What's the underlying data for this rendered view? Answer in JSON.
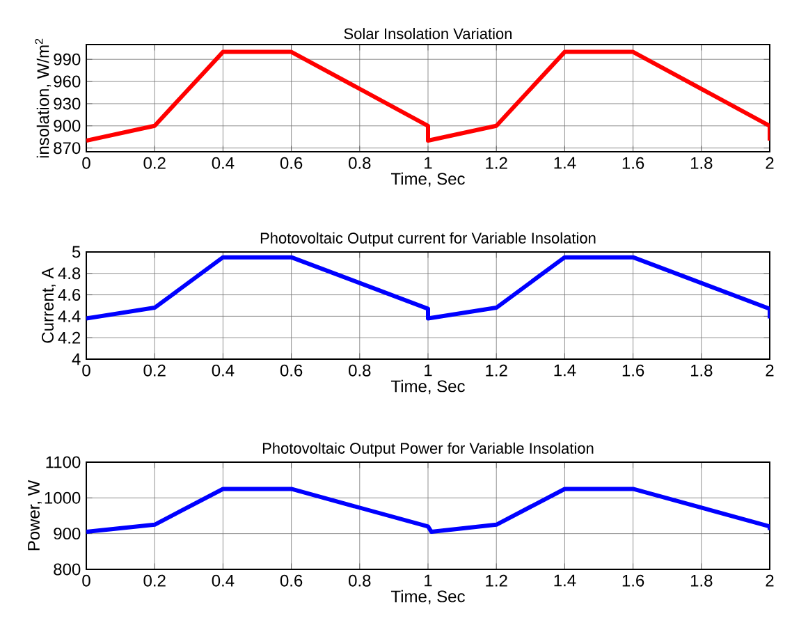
{
  "chart_data": [
    {
      "type": "line",
      "title": "Solar Insolation Variation",
      "xlabel": "Time, Sec",
      "ylabel": "insolation, W/m$^{2}$",
      "color": "#ff0000",
      "grid": true,
      "x": [
        0,
        0.2,
        0.4,
        0.6,
        1.0,
        1.0,
        1.2,
        1.4,
        1.6,
        2.0,
        2.0
      ],
      "values": [
        880,
        900,
        1000,
        1000,
        900,
        880,
        900,
        1000,
        1000,
        900,
        880
      ],
      "xlim": [
        0,
        2
      ],
      "ylim": [
        865,
        1010
      ],
      "xticks": [
        0,
        0.2,
        0.4,
        0.6,
        0.8,
        1,
        1.2,
        1.4,
        1.6,
        1.8,
        2
      ],
      "yticks": [
        870,
        900,
        930,
        960,
        990
      ]
    },
    {
      "type": "line",
      "title": "Photovoltaic Output current for Variable Insolation",
      "xlabel": "Time, Sec",
      "ylabel": "Current, A",
      "color": "#0000ff",
      "grid": true,
      "x": [
        0,
        0.2,
        0.4,
        0.6,
        1.0,
        1.0,
        1.2,
        1.4,
        1.6,
        2.0,
        2.0
      ],
      "values": [
        4.38,
        4.48,
        4.95,
        4.95,
        4.47,
        4.38,
        4.48,
        4.95,
        4.95,
        4.47,
        4.38
      ],
      "xlim": [
        0,
        2
      ],
      "ylim": [
        4,
        5
      ],
      "xticks": [
        0,
        0.2,
        0.4,
        0.6,
        0.8,
        1,
        1.2,
        1.4,
        1.6,
        1.8,
        2
      ],
      "yticks": [
        4,
        4.2,
        4.4,
        4.6,
        4.8,
        5
      ]
    },
    {
      "type": "line",
      "title": "Photovoltaic Output Power for Variable Insolation",
      "xlabel": "Time, Sec",
      "ylabel": "Power, W",
      "color": "#0000ff",
      "grid": true,
      "x": [
        0,
        0.2,
        0.4,
        0.6,
        1.0,
        1.01,
        1.2,
        1.4,
        1.6,
        2.0,
        2.0
      ],
      "values": [
        905,
        925,
        1025,
        1025,
        920,
        905,
        925,
        1025,
        1025,
        920,
        910
      ],
      "xlim": [
        0,
        2
      ],
      "ylim": [
        800,
        1100
      ],
      "xticks": [
        0,
        0.2,
        0.4,
        0.6,
        0.8,
        1,
        1.2,
        1.4,
        1.6,
        1.8,
        2
      ],
      "yticks": [
        800,
        900,
        1000,
        1100
      ]
    }
  ]
}
